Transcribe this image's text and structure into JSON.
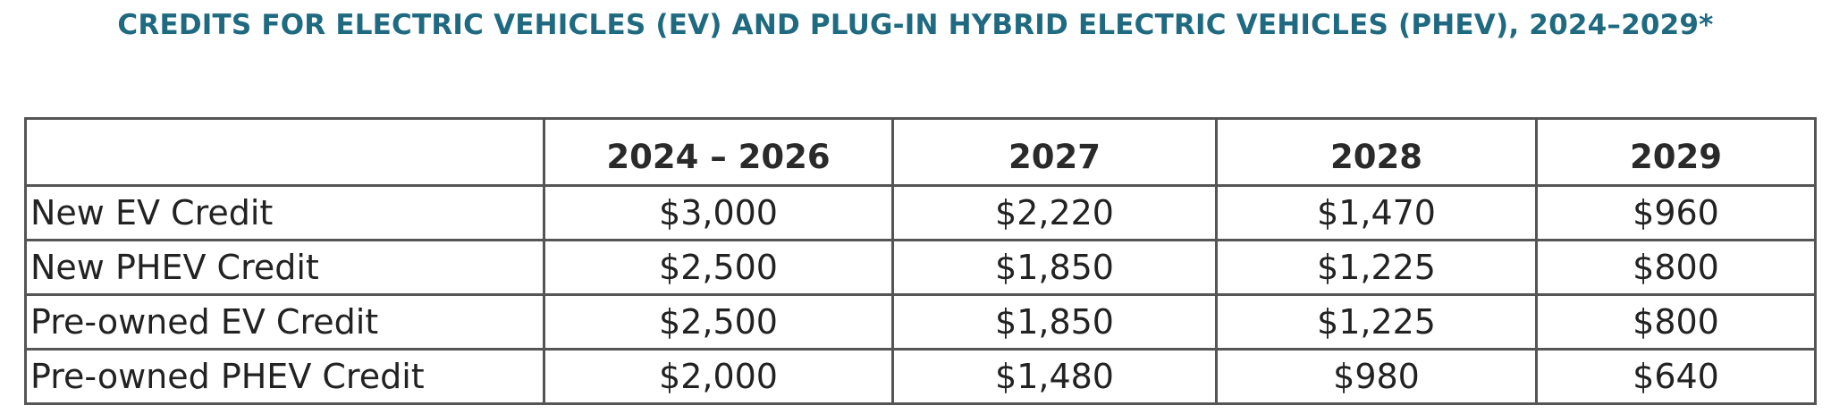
{
  "title": "CREDITS FOR ELECTRIC VEHICLES (EV) AND PLUG-IN HYBRID ELECTRIC VEHICLES (PHEV), 2024–2029*",
  "table": {
    "columns": [
      "",
      "2024 – 2026",
      "2027",
      "2028",
      "2029"
    ],
    "rows": [
      {
        "label": "New EV Credit",
        "values": [
          "$3,000",
          "$2,220",
          "$1,470",
          "$960"
        ]
      },
      {
        "label": "New PHEV Credit",
        "values": [
          "$2,500",
          "$1,850",
          "$1,225",
          "$800"
        ]
      },
      {
        "label": "Pre-owned EV Credit",
        "values": [
          "$2,500",
          "$1,850",
          "$1,225",
          "$800"
        ]
      },
      {
        "label": "Pre-owned PHEV Credit",
        "values": [
          "$2,000",
          "$1,480",
          "$980",
          "$640"
        ]
      }
    ]
  },
  "colors": {
    "title": "#1f6a80",
    "border": "#555555",
    "text": "#222222"
  }
}
